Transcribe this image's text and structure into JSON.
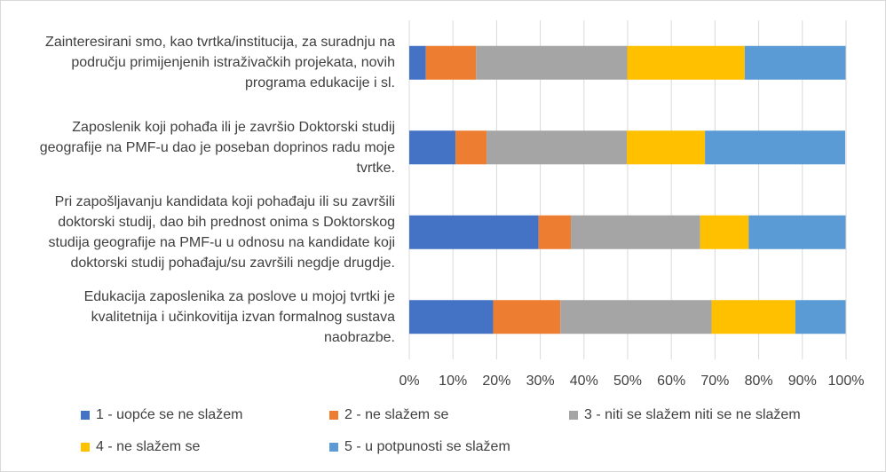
{
  "chart_data": {
    "type": "bar",
    "orientation": "horizontal",
    "stacked": "percent",
    "categories": [
      [
        "Zainteresirani smo, kao tvrtka/institucija, za suradnju na",
        "području primijenjenih istraživačkih projekata, novih",
        "programa edukacije i sl."
      ],
      [
        "Zaposlenik koji pohađa ili je završio Doktorski studij",
        "geografije na PMF-u dao je poseban doprinos radu moje",
        "tvrtke."
      ],
      [
        "Pri zapošljavanju kandidata koji pohađaju ili su završili",
        "doktorski studij, dao bih prednost onima s Doktorskog",
        "studija geografije na PMF-u u odnosu na kandidate koji",
        "doktorski studij pohađaju/su završili negdje drugdje."
      ],
      [
        "Edukacija zaposlenika za poslove u mojoj tvrtki je",
        "kvalitetnija i učinkovitija izvan formalnog sustava",
        "naobrazbe."
      ]
    ],
    "series": [
      {
        "name": "1 - uopće se ne slažem",
        "color": "#4472C4",
        "values": [
          3.8,
          10.6,
          29.6,
          19.2
        ]
      },
      {
        "name": "2 - ne slažem se",
        "color": "#ED7D31",
        "values": [
          11.5,
          7.1,
          7.4,
          15.4
        ]
      },
      {
        "name": "3 - niti se slažem niti se ne slažem",
        "color": "#A5A5A5",
        "values": [
          34.6,
          32.1,
          29.6,
          34.6
        ]
      },
      {
        "name": "4 - ne slažem se",
        "color": "#FFC000",
        "values": [
          26.9,
          17.9,
          11.1,
          19.2
        ]
      },
      {
        "name": "5 - u potpunosti se slažem",
        "color": "#5B9BD5",
        "values": [
          23.1,
          32.1,
          22.2,
          11.5
        ]
      }
    ],
    "xticks": [
      "0%",
      "10%",
      "20%",
      "30%",
      "40%",
      "50%",
      "60%",
      "70%",
      "80%",
      "90%",
      "100%"
    ],
    "xlim": [
      0,
      100
    ],
    "grid": true,
    "legend": "bottom"
  }
}
